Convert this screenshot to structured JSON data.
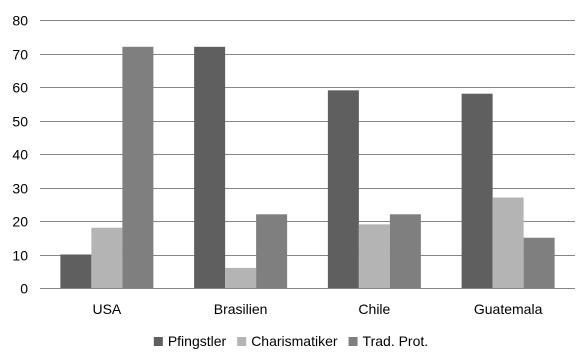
{
  "chart_data": {
    "type": "bar",
    "categories": [
      "USA",
      "Brasilien",
      "Chile",
      "Guatemala"
    ],
    "series": [
      {
        "name": "Pfingstler",
        "values": [
          10,
          72,
          59,
          58
        ],
        "color": "#5f5f5f"
      },
      {
        "name": "Charismatiker",
        "values": [
          18,
          6,
          19,
          27
        ],
        "color": "#b4b4b4"
      },
      {
        "name": "Trad. Prot.",
        "values": [
          72,
          22,
          22,
          15
        ],
        "color": "#7f7f7f"
      }
    ],
    "yticks": [
      0,
      10,
      20,
      30,
      40,
      50,
      60,
      70,
      80
    ],
    "ylim": [
      0,
      80
    ],
    "grid": true,
    "legend_position": "bottom"
  }
}
